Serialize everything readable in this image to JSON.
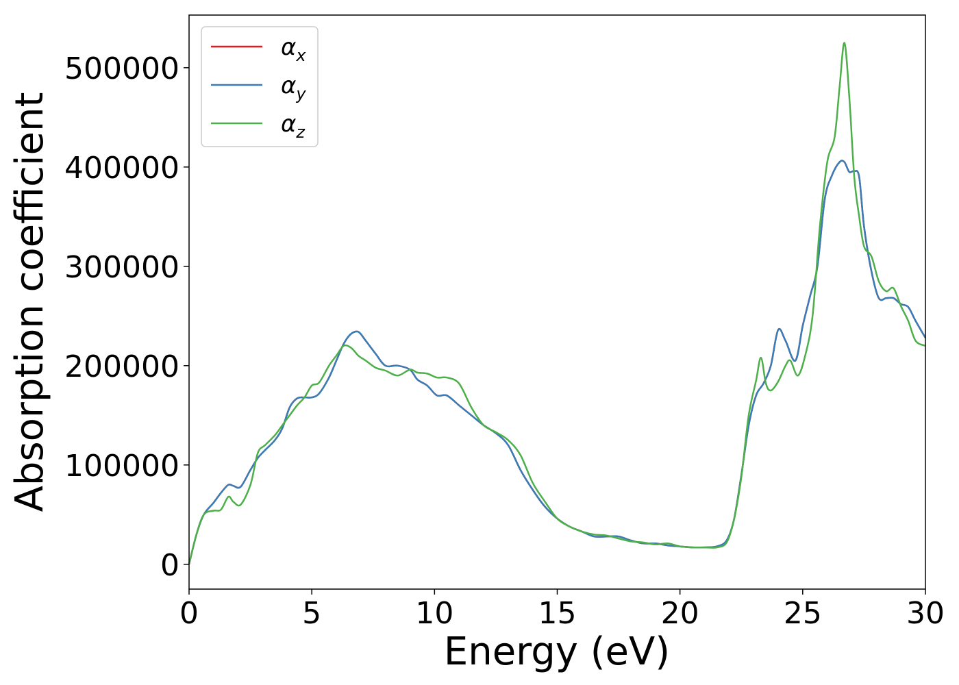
{
  "chart_data": {
    "type": "line",
    "title": "",
    "xlabel": "Energy (eV)",
    "ylabel": "Absorption coefficient",
    "xlim": [
      0,
      30
    ],
    "ylim": [
      -25000,
      553000
    ],
    "xticks": [
      0,
      5,
      10,
      15,
      20,
      25,
      30
    ],
    "yticks": [
      0,
      100000,
      200000,
      300000,
      400000,
      500000
    ],
    "grid": false,
    "legend": "top-left",
    "series": [
      {
        "name": "α_x",
        "legend_base": "α",
        "legend_sub": "x",
        "color": "#e41a1c",
        "x": [
          0,
          0.3,
          0.6,
          1.0,
          1.3,
          1.6,
          1.8,
          2.1,
          2.5,
          2.8,
          3.1,
          3.5,
          3.8,
          4.1,
          4.4,
          4.7,
          5.0,
          5.3,
          5.7,
          6.0,
          6.3,
          6.6,
          6.9,
          7.2,
          7.6,
          8.0,
          8.5,
          9.0,
          9.3,
          9.7,
          10.1,
          10.5,
          11.0,
          11.5,
          12.0,
          12.5,
          13.0,
          13.5,
          14.0,
          14.5,
          15.0,
          15.5,
          16.0,
          16.5,
          17.0,
          17.5,
          18.0,
          18.5,
          19.0,
          19.5,
          20.0,
          20.5,
          21.0,
          21.5,
          21.9,
          22.2,
          22.5,
          22.8,
          23.1,
          23.4,
          23.7,
          24.0,
          24.3,
          24.7,
          25.0,
          25.3,
          25.6,
          25.9,
          26.2,
          26.5,
          26.7,
          26.9,
          27.1,
          27.3,
          27.5,
          27.8,
          28.1,
          28.4,
          28.7,
          29.0,
          29.3,
          29.6,
          30.0
        ],
        "y": [
          0,
          30000,
          50000,
          62000,
          72000,
          80000,
          79000,
          78000,
          95000,
          107000,
          115000,
          125000,
          137000,
          158000,
          167000,
          168000,
          168000,
          172000,
          188000,
          205000,
          222000,
          232000,
          234000,
          225000,
          212000,
          200000,
          200000,
          196000,
          186000,
          180000,
          170000,
          170000,
          160000,
          150000,
          140000,
          132000,
          120000,
          95000,
          75000,
          58000,
          46000,
          38000,
          33000,
          28000,
          28000,
          28000,
          24000,
          21000,
          21000,
          19000,
          18000,
          17000,
          17000,
          18000,
          24000,
          45000,
          90000,
          140000,
          170000,
          182000,
          200000,
          236000,
          225000,
          205000,
          240000,
          270000,
          300000,
          368000,
          392000,
          405000,
          405000,
          395000,
          396000,
          390000,
          340000,
          295000,
          268000,
          268000,
          268000,
          262000,
          259000,
          245000,
          228000
        ]
      },
      {
        "name": "α_y",
        "legend_base": "α",
        "legend_sub": "y",
        "color": "#377eb8",
        "x": [
          0,
          0.3,
          0.6,
          1.0,
          1.3,
          1.6,
          1.8,
          2.1,
          2.5,
          2.8,
          3.1,
          3.5,
          3.8,
          4.1,
          4.4,
          4.7,
          5.0,
          5.3,
          5.7,
          6.0,
          6.3,
          6.6,
          6.9,
          7.2,
          7.6,
          8.0,
          8.5,
          9.0,
          9.3,
          9.7,
          10.1,
          10.5,
          11.0,
          11.5,
          12.0,
          12.5,
          13.0,
          13.5,
          14.0,
          14.5,
          15.0,
          15.5,
          16.0,
          16.5,
          17.0,
          17.5,
          18.0,
          18.5,
          19.0,
          19.5,
          20.0,
          20.5,
          21.0,
          21.5,
          21.9,
          22.2,
          22.5,
          22.8,
          23.1,
          23.4,
          23.7,
          24.0,
          24.3,
          24.7,
          25.0,
          25.3,
          25.6,
          25.9,
          26.2,
          26.5,
          26.7,
          26.9,
          27.1,
          27.3,
          27.5,
          27.8,
          28.1,
          28.4,
          28.7,
          29.0,
          29.3,
          29.6,
          30.0
        ],
        "y": [
          0,
          30000,
          50000,
          62000,
          72000,
          80000,
          79000,
          78000,
          95000,
          107000,
          115000,
          125000,
          137000,
          158000,
          167000,
          168000,
          168000,
          172000,
          188000,
          205000,
          222000,
          232000,
          234000,
          225000,
          212000,
          200000,
          200000,
          196000,
          186000,
          180000,
          170000,
          170000,
          160000,
          150000,
          140000,
          132000,
          120000,
          95000,
          75000,
          58000,
          46000,
          38000,
          33000,
          28000,
          28000,
          28000,
          24000,
          21000,
          21000,
          19000,
          18000,
          17000,
          17000,
          18000,
          24000,
          45000,
          90000,
          140000,
          170000,
          182000,
          200000,
          236000,
          225000,
          205000,
          240000,
          270000,
          300000,
          368000,
          392000,
          405000,
          405000,
          395000,
          396000,
          390000,
          340000,
          295000,
          268000,
          268000,
          268000,
          262000,
          259000,
          245000,
          228000
        ]
      },
      {
        "name": "α_z",
        "legend_base": "α",
        "legend_sub": "z",
        "color": "#4daf4a",
        "x": [
          0,
          0.3,
          0.6,
          1.0,
          1.3,
          1.6,
          1.8,
          2.1,
          2.5,
          2.8,
          3.1,
          3.5,
          3.8,
          4.1,
          4.4,
          4.7,
          5.0,
          5.3,
          5.7,
          6.0,
          6.3,
          6.6,
          6.9,
          7.2,
          7.6,
          8.0,
          8.5,
          9.0,
          9.3,
          9.7,
          10.1,
          10.5,
          11.0,
          11.5,
          12.0,
          12.5,
          13.0,
          13.5,
          14.0,
          14.5,
          15.0,
          15.5,
          16.0,
          16.5,
          17.0,
          17.5,
          18.0,
          18.5,
          19.0,
          19.5,
          20.0,
          20.5,
          21.0,
          21.5,
          21.9,
          22.2,
          22.5,
          22.8,
          23.1,
          23.3,
          23.5,
          23.7,
          24.0,
          24.3,
          24.5,
          24.8,
          25.1,
          25.4,
          25.7,
          26.0,
          26.3,
          26.5,
          26.7,
          26.9,
          27.1,
          27.3,
          27.5,
          27.8,
          28.1,
          28.4,
          28.7,
          29.0,
          29.3,
          29.6,
          30.0
        ],
        "y": [
          0,
          30000,
          50000,
          54000,
          55000,
          68000,
          63000,
          60000,
          80000,
          112000,
          120000,
          130000,
          140000,
          150000,
          160000,
          168000,
          180000,
          183000,
          200000,
          210000,
          220000,
          218000,
          210000,
          205000,
          198000,
          195000,
          190000,
          196000,
          193000,
          192000,
          188000,
          188000,
          182000,
          158000,
          140000,
          133000,
          125000,
          110000,
          82000,
          63000,
          46000,
          38000,
          33000,
          30000,
          29000,
          26000,
          23000,
          22000,
          20000,
          21000,
          18000,
          17000,
          17000,
          17000,
          22000,
          45000,
          88000,
          150000,
          185000,
          208000,
          182000,
          175000,
          184000,
          200000,
          205000,
          190000,
          210000,
          250000,
          340000,
          405000,
          430000,
          480000,
          525000,
          470000,
          390000,
          350000,
          320000,
          310000,
          285000,
          275000,
          278000,
          260000,
          245000,
          225000,
          220000
        ]
      }
    ]
  }
}
